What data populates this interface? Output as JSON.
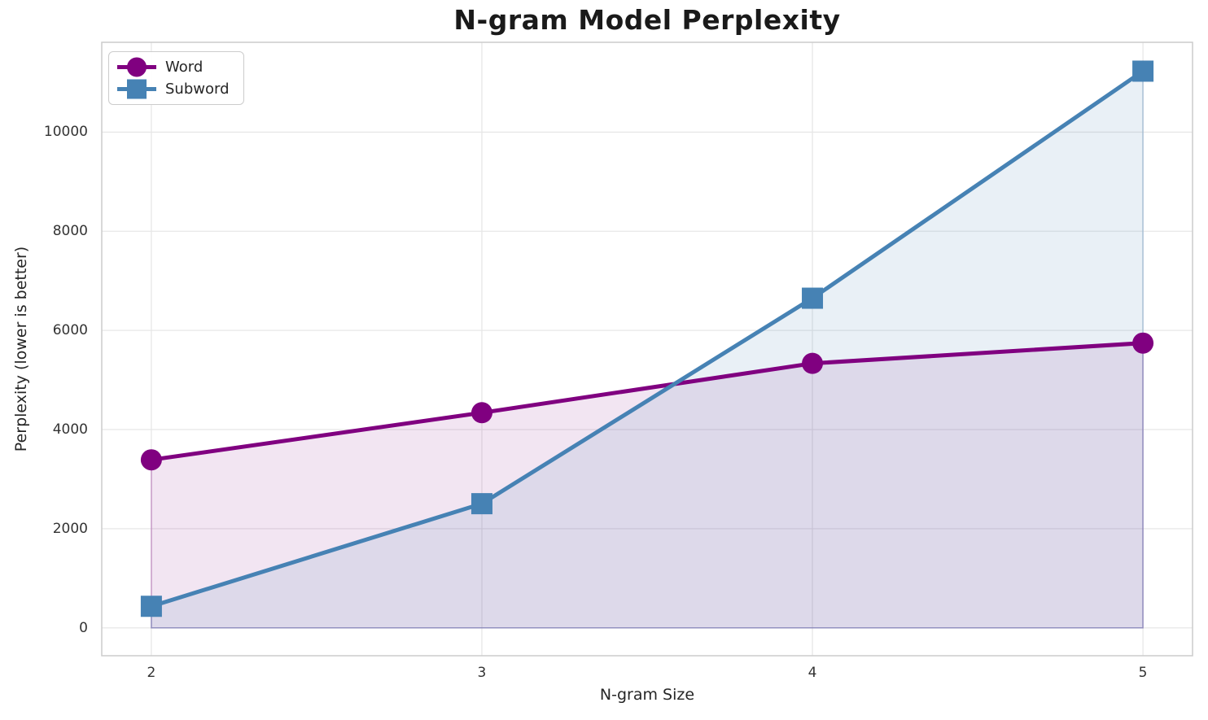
{
  "chart_data": {
    "type": "line",
    "title": "N-gram Model Perplexity",
    "xlabel": "N-gram Size",
    "ylabel": "Perplexity (lower is better)",
    "x": [
      2,
      3,
      4,
      5
    ],
    "series": [
      {
        "name": "Word",
        "marker": "circle",
        "color": "#800080",
        "fill": "rgba(128,0,128,0.10)",
        "fill_edge": "rgba(128,0,128,0.30)",
        "values": [
          3390,
          4340,
          5335,
          5745
        ]
      },
      {
        "name": "Subword",
        "marker": "square",
        "color": "#4682b4",
        "fill": "rgba(70,130,180,0.12)",
        "fill_edge": "rgba(70,130,180,0.35)",
        "values": [
          435,
          2505,
          6650,
          11230
        ]
      }
    ],
    "xticks": [
      2,
      3,
      4,
      5
    ],
    "yticks": [
      0,
      2000,
      4000,
      6000,
      8000,
      10000
    ],
    "xlim": [
      1.85,
      5.15
    ],
    "ylim": [
      -562,
      11812
    ],
    "fill_to": 0,
    "grid": true,
    "grid_color": "#e7e7e7",
    "spine_color": "#cccccc",
    "legend_position": "upper-left"
  }
}
